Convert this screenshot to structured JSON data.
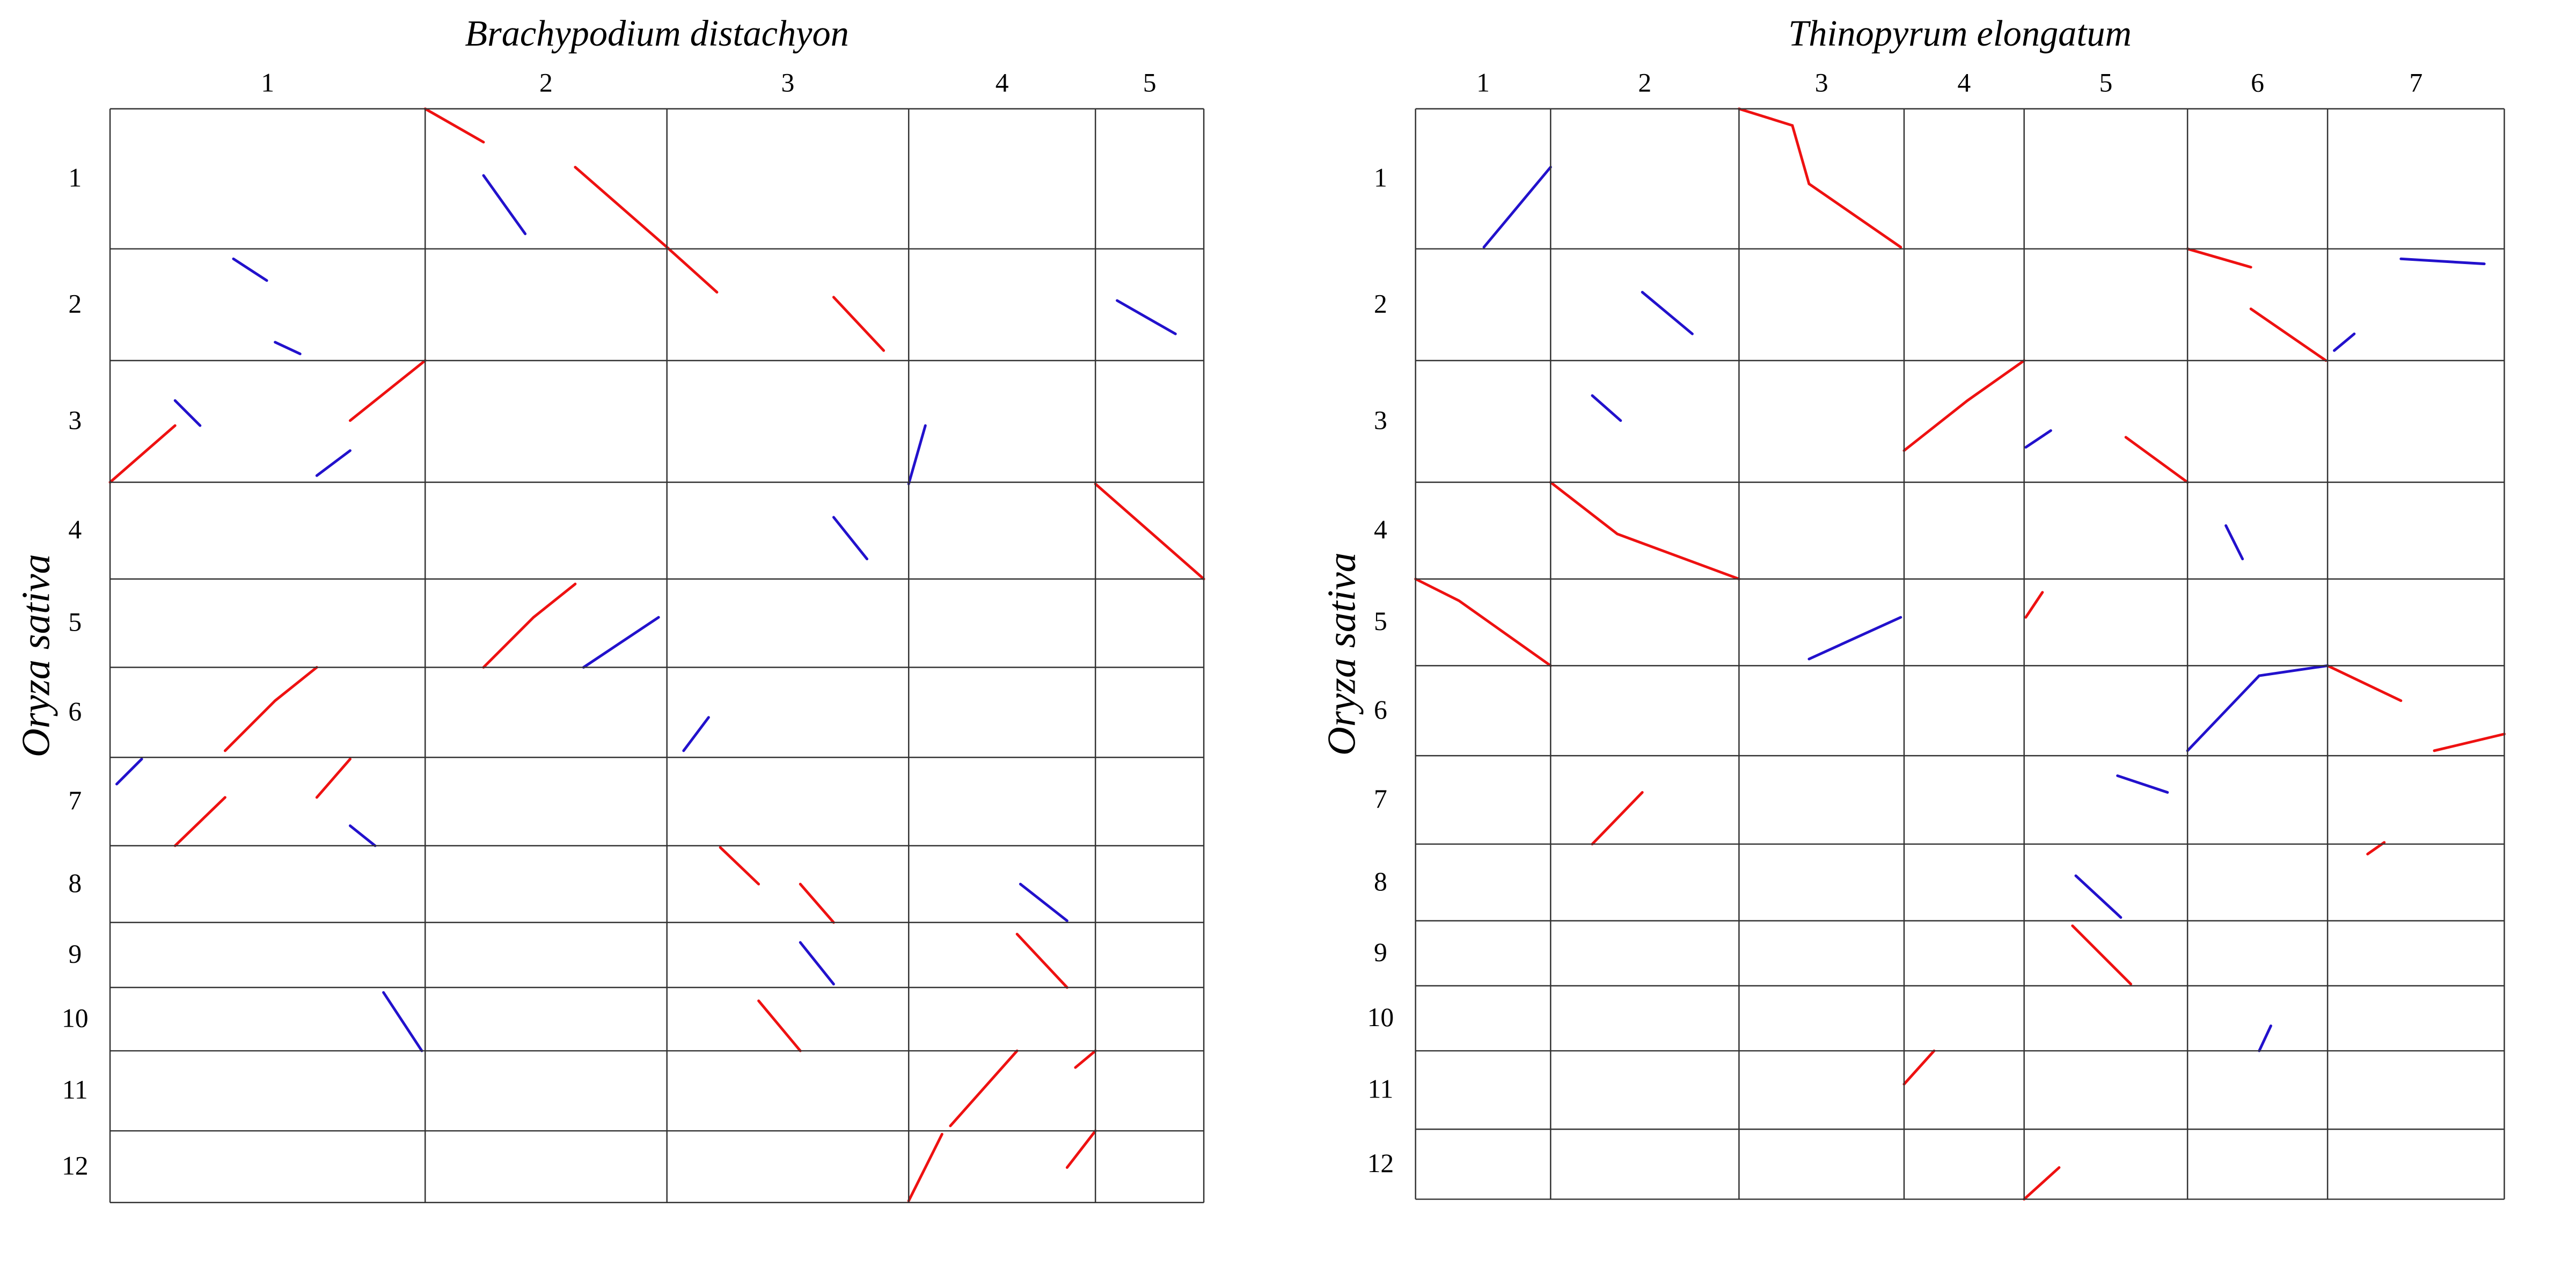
{
  "panels": [
    {
      "title": "Brachypodium distachyon",
      "y_label": "Oryza sativa",
      "columns": [
        "1",
        "2",
        "3",
        "4",
        "5"
      ],
      "rows": [
        "1",
        "2",
        "3",
        "4",
        "5",
        "6",
        "7",
        "8",
        "9",
        "10",
        "11",
        "12"
      ]
    },
    {
      "title": "Thinopyrum elongatum",
      "y_label": "Oryza sativa",
      "columns": [
        "1",
        "2",
        "3",
        "4",
        "5",
        "6",
        "7"
      ],
      "rows": [
        "1",
        "2",
        "3",
        "4",
        "5",
        "6",
        "7",
        "8",
        "9",
        "10",
        "11",
        "12"
      ]
    }
  ]
}
